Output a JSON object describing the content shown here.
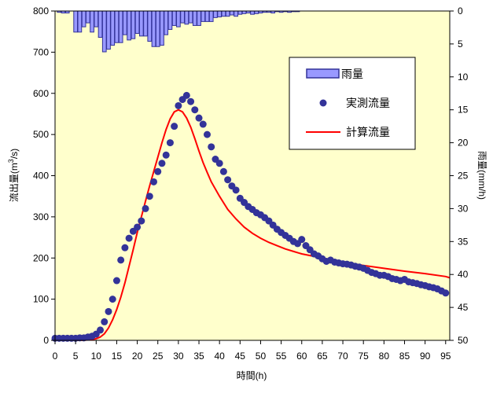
{
  "chart_data": {
    "type": "bar+scatter+line",
    "xlabel": "時間(h)",
    "ylabel_left": "流出量(m3/s)",
    "ylabel_left_parts": {
      "pre": "流出量(m",
      "sup": "3",
      "post": "/s)"
    },
    "ylabel_right": "雨量(mm/h)",
    "xlim": [
      0,
      96
    ],
    "ylim_left": [
      0,
      800
    ],
    "ylim_right": [
      0,
      50
    ],
    "right_axis_inverted": true,
    "x_ticks": [
      0,
      5,
      10,
      15,
      20,
      25,
      30,
      35,
      40,
      45,
      50,
      55,
      60,
      65,
      70,
      75,
      80,
      85,
      90,
      95
    ],
    "y_left_ticks": [
      0,
      100,
      200,
      300,
      400,
      500,
      600,
      700,
      800
    ],
    "y_right_ticks": [
      0,
      5,
      10,
      15,
      20,
      25,
      30,
      35,
      40,
      45,
      50
    ],
    "grid": false,
    "legend_position": "right-middle",
    "background_color": "#ffffcc",
    "colors": {
      "rain_fill": "#9999ff",
      "rain_stroke": "#333399",
      "observed": "#333399",
      "computed": "#ff0000"
    },
    "series": [
      {
        "name": "雨量",
        "kind": "bar",
        "axis": "right",
        "x": [
          1,
          2,
          3,
          4,
          5,
          6,
          7,
          8,
          9,
          10,
          11,
          12,
          13,
          14,
          15,
          16,
          17,
          18,
          19,
          20,
          21,
          22,
          23,
          24,
          25,
          26,
          27,
          28,
          29,
          30,
          31,
          32,
          33,
          34,
          35,
          36,
          37,
          38,
          39,
          40,
          41,
          42,
          43,
          44,
          45,
          46,
          47,
          48,
          49,
          50,
          51,
          52,
          53,
          54,
          55,
          56,
          57,
          58,
          59,
          60
        ],
        "values": [
          0.2,
          0.3,
          0.3,
          0,
          3.2,
          3.2,
          2.4,
          1.8,
          3.2,
          2.4,
          4.0,
          6.2,
          5.8,
          5.2,
          4.8,
          4.8,
          3.6,
          4.4,
          4.2,
          3.4,
          3.8,
          3.8,
          4.6,
          5.4,
          5.4,
          5.2,
          3.6,
          2.8,
          2.2,
          2.4,
          1.8,
          2.0,
          1.8,
          2.2,
          2.2,
          1.6,
          1.6,
          1.6,
          1.0,
          0.9,
          0.8,
          0.8,
          0.6,
          0.8,
          0.5,
          0.4,
          0.3,
          0.5,
          0.4,
          0.3,
          0.2,
          0.2,
          0.3,
          0.1,
          0.2,
          0.1,
          0.2,
          0.1,
          0.1,
          0
        ]
      },
      {
        "name": "実測流量",
        "kind": "scatter",
        "axis": "left",
        "x": [
          0,
          1,
          2,
          3,
          4,
          5,
          6,
          7,
          8,
          9,
          10,
          11,
          12,
          13,
          14,
          15,
          16,
          17,
          18,
          19,
          20,
          21,
          22,
          23,
          24,
          25,
          26,
          27,
          28,
          29,
          30,
          31,
          32,
          33,
          34,
          35,
          36,
          37,
          38,
          39,
          40,
          41,
          42,
          43,
          44,
          45,
          46,
          47,
          48,
          49,
          50,
          51,
          52,
          53,
          54,
          55,
          56,
          57,
          58,
          59,
          60,
          61,
          62,
          63,
          64,
          65,
          66,
          67,
          68,
          69,
          70,
          71,
          72,
          73,
          74,
          75,
          76,
          77,
          78,
          79,
          80,
          81,
          82,
          83,
          84,
          85,
          86,
          87,
          88,
          89,
          90,
          91,
          92,
          93,
          94,
          95
        ],
        "values": [
          5,
          5,
          5,
          5,
          5,
          5,
          6,
          6,
          8,
          10,
          15,
          25,
          45,
          70,
          100,
          145,
          195,
          225,
          248,
          265,
          275,
          290,
          320,
          350,
          385,
          410,
          430,
          450,
          480,
          520,
          570,
          585,
          595,
          580,
          560,
          540,
          525,
          500,
          470,
          440,
          430,
          410,
          390,
          375,
          365,
          345,
          335,
          325,
          318,
          310,
          305,
          298,
          290,
          280,
          270,
          262,
          255,
          248,
          240,
          235,
          245,
          230,
          220,
          210,
          205,
          198,
          192,
          195,
          190,
          188,
          186,
          185,
          183,
          180,
          178,
          175,
          170,
          165,
          162,
          158,
          158,
          155,
          150,
          148,
          145,
          148,
          142,
          140,
          138,
          135,
          133,
          130,
          128,
          125,
          120,
          115
        ]
      },
      {
        "name": "計算流量",
        "kind": "line",
        "axis": "left",
        "x": [
          0,
          2,
          4,
          6,
          8,
          9,
          10,
          11,
          12,
          13,
          14,
          15,
          16,
          17,
          18,
          19,
          20,
          21,
          22,
          23,
          24,
          25,
          26,
          27,
          28,
          29,
          30,
          31,
          32,
          33,
          34,
          35,
          36,
          37,
          38,
          40,
          42,
          44,
          46,
          48,
          50,
          52,
          54,
          56,
          58,
          60,
          65,
          70,
          75,
          80,
          85,
          90,
          95,
          96
        ],
        "values": [
          0,
          0,
          0,
          0,
          1,
          2,
          4,
          8,
          16,
          30,
          50,
          75,
          105,
          140,
          180,
          220,
          262,
          300,
          338,
          375,
          410,
          445,
          480,
          512,
          538,
          555,
          560,
          555,
          540,
          518,
          490,
          460,
          432,
          408,
          385,
          350,
          318,
          295,
          275,
          260,
          248,
          238,
          230,
          222,
          216,
          210,
          200,
          190,
          182,
          175,
          168,
          162,
          155,
          152
        ]
      }
    ]
  },
  "legend": [
    {
      "label": "雨量",
      "kind": "bar"
    },
    {
      "label": "実測流量",
      "kind": "scatter"
    },
    {
      "label": "計算流量",
      "kind": "line"
    }
  ]
}
